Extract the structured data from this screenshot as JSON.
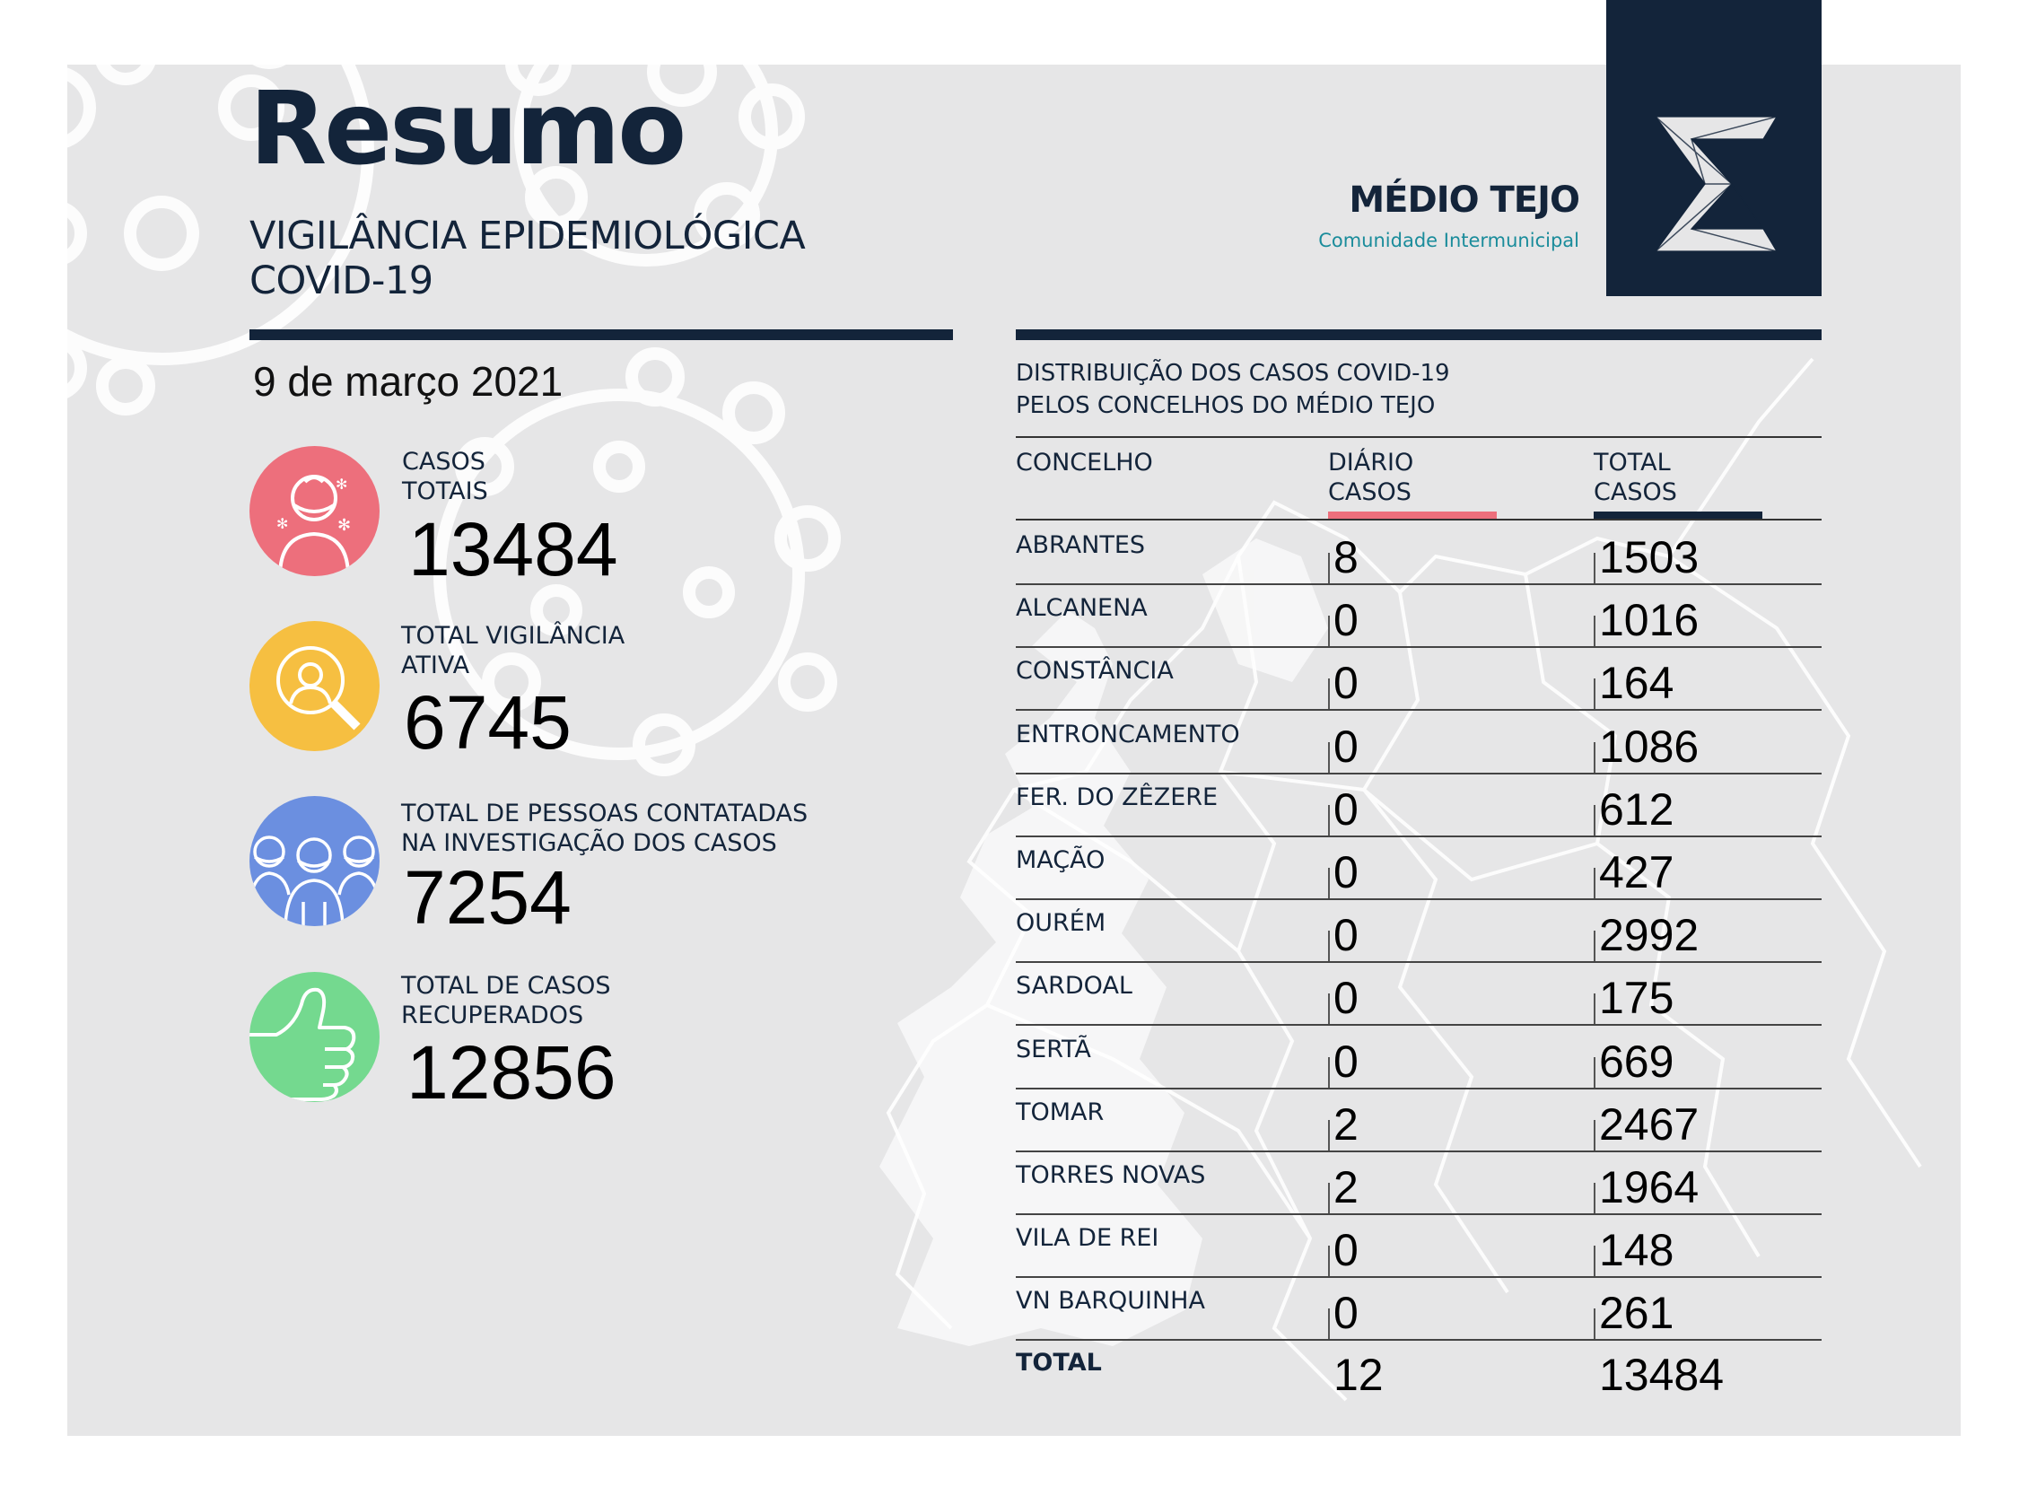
{
  "header": {
    "title": "Resumo",
    "subtitle_line1": "VIGILÂNCIA EPIDEMIOLÓGICA",
    "subtitle_line2": "COVID-19",
    "date": "9 de março 2021"
  },
  "brand": {
    "name": "MÉDIO TEJO",
    "tagline": "Comunidade Intermunicipal"
  },
  "stats": [
    {
      "label_line1": "CASOS",
      "label_line2": "TOTAIS",
      "value": "13484",
      "icon": "masked-person-icon",
      "color": "#ed6f7c"
    },
    {
      "label_line1": "TOTAL VIGILÂNCIA",
      "label_line2": "ATIVA",
      "value": "6745",
      "icon": "magnifier-person-icon",
      "color": "#f6bf41"
    },
    {
      "label_line1": "TOTAL DE PESSOAS CONTATADAS",
      "label_line2": "NA INVESTIGAÇÃO DOS CASOS",
      "value": "7254",
      "icon": "group-masked-icon",
      "color": "#6b8fe0"
    },
    {
      "label_line1": "TOTAL DE CASOS",
      "label_line2": "RECUPERADOS",
      "value": "12856",
      "icon": "thumbs-up-icon",
      "color": "#74d98f"
    }
  ],
  "table": {
    "title_line1": "DISTRIBUIÇÃO DOS CASOS COVID-19",
    "title_line2": "PELOS CONCELHOS DO MÉDIO TEJO",
    "col_concelho": "CONCELHO",
    "col_daily_line1": "DIÁRIO",
    "col_daily_line2": "CASOS",
    "col_total_line1": "TOTAL",
    "col_total_line2": "CASOS",
    "daily_color": "#ed6f7c",
    "total_color": "#13243a",
    "rows": [
      {
        "name": "ABRANTES",
        "daily": "8",
        "total": "1503"
      },
      {
        "name": "ALCANENA",
        "daily": "0",
        "total": "1016"
      },
      {
        "name": "CONSTÂNCIA",
        "daily": "0",
        "total": "164"
      },
      {
        "name": "ENTRONCAMENTO",
        "daily": "0",
        "total": "1086"
      },
      {
        "name": "FER. DO ZÊZERE",
        "daily": "0",
        "total": "612"
      },
      {
        "name": "MAÇÃO",
        "daily": "0",
        "total": "427"
      },
      {
        "name": "OURÉM",
        "daily": "0",
        "total": "2992"
      },
      {
        "name": "SARDOAL",
        "daily": "0",
        "total": "175"
      },
      {
        "name": "SERTÃ",
        "daily": "0",
        "total": "669"
      },
      {
        "name": "TOMAR",
        "daily": "2",
        "total": "2467"
      },
      {
        "name": "TORRES NOVAS",
        "daily": "2",
        "total": "1964"
      },
      {
        "name": "VILA DE REI",
        "daily": "0",
        "total": "148"
      },
      {
        "name": "VN BARQUINHA",
        "daily": "0",
        "total": "261"
      }
    ],
    "total_row": {
      "name": "TOTAL",
      "daily": "12",
      "total": "13484"
    }
  }
}
